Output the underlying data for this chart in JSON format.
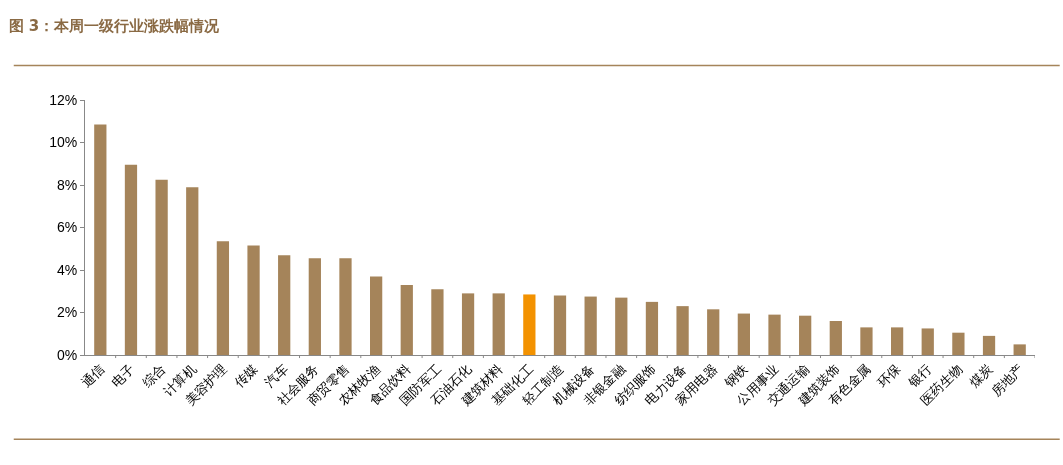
{
  "chart_data": {
    "type": "bar",
    "title": "图 3：本周一级行业涨跌幅情况",
    "categories": [
      "通信",
      "电子",
      "综合",
      "计算机",
      "美容护理",
      "传媒",
      "汽车",
      "社会服务",
      "商贸零售",
      "农林牧渔",
      "食品饮料",
      "国防军工",
      "石油石化",
      "建筑材料",
      "基础化工",
      "轻工制造",
      "机械设备",
      "非银金融",
      "纺织服饰",
      "电力设备",
      "家用电器",
      "钢铁",
      "公用事业",
      "交通运输",
      "建筑装饰",
      "有色金属",
      "环保",
      "银行",
      "医药生物",
      "煤炭",
      "房地产"
    ],
    "values": [
      10.85,
      8.95,
      8.25,
      7.9,
      5.35,
      5.15,
      4.7,
      4.55,
      4.55,
      3.7,
      3.3,
      3.1,
      2.9,
      2.9,
      2.85,
      2.8,
      2.75,
      2.7,
      2.5,
      2.3,
      2.15,
      1.95,
      1.9,
      1.85,
      1.6,
      1.3,
      1.3,
      1.25,
      1.05,
      0.9,
      0.5
    ],
    "colors": [
      "#a5845a",
      "#a5845a",
      "#a5845a",
      "#a5845a",
      "#a5845a",
      "#a5845a",
      "#a5845a",
      "#a5845a",
      "#a5845a",
      "#a5845a",
      "#a5845a",
      "#a5845a",
      "#a5845a",
      "#a5845a",
      "#f39200",
      "#a5845a",
      "#a5845a",
      "#a5845a",
      "#a5845a",
      "#a5845a",
      "#a5845a",
      "#a5845a",
      "#a5845a",
      "#a5845a",
      "#a5845a",
      "#a5845a",
      "#a5845a",
      "#a5845a",
      "#a5845a",
      "#a5845a",
      "#a5845a"
    ],
    "ylim": [
      0,
      12
    ],
    "yticks": [
      {
        "value": 0,
        "label": "0%"
      },
      {
        "value": 2,
        "label": "2%"
      },
      {
        "value": 4,
        "label": "4%"
      },
      {
        "value": 6,
        "label": "6%"
      },
      {
        "value": 8,
        "label": "8%"
      },
      {
        "value": 10,
        "label": "10%"
      },
      {
        "value": 12,
        "label": "12%"
      }
    ],
    "grid": false,
    "legend": false
  }
}
